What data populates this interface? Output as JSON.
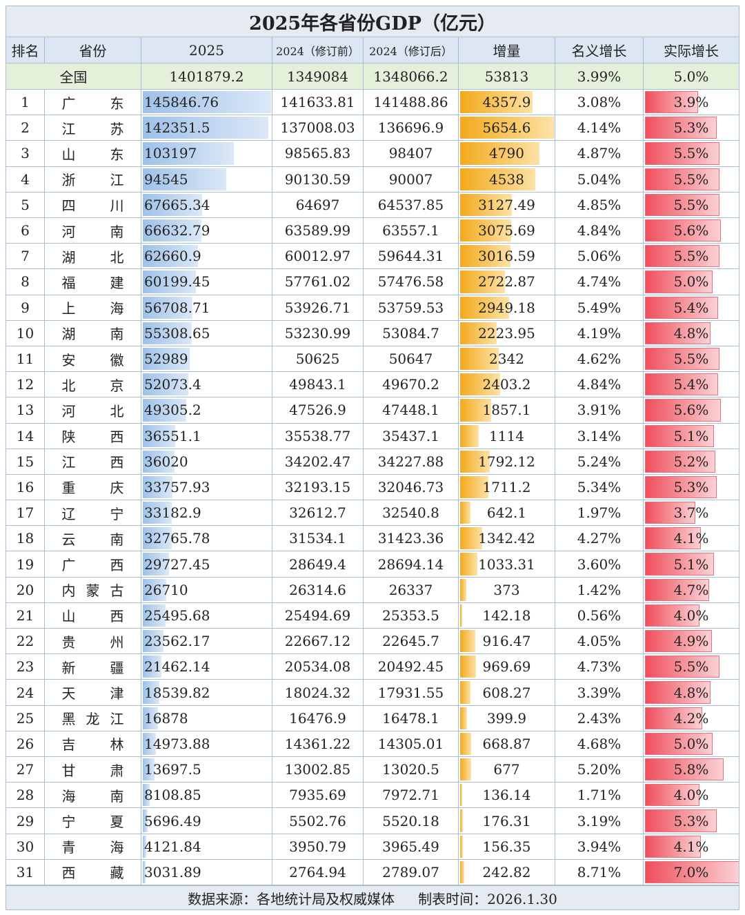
{
  "title": "2025年各省份GDP（亿元）",
  "table": {
    "header": [
      "排名",
      "省份",
      "2025",
      "2024（修订前）",
      "2024（修订后）",
      "增量",
      "名义增长",
      "实际增长"
    ],
    "national": [
      "全国",
      "1401879.2",
      "1349084",
      "1348066.2",
      "53813",
      "3.99%",
      "5.0%"
    ],
    "rows": [
      [
        "1",
        "广东",
        "145846.76",
        "141633.81",
        "141488.86",
        "4357.9",
        "3.08%",
        "3.9%"
      ],
      [
        "2",
        "江苏",
        "142351.5",
        "137008.03",
        "136696.9",
        "5654.6",
        "4.14%",
        "5.3%"
      ],
      [
        "3",
        "山东",
        "103197",
        "98565.83",
        "98407",
        "4790",
        "4.87%",
        "5.5%"
      ],
      [
        "4",
        "浙江",
        "94545",
        "90130.59",
        "90007",
        "4538",
        "5.04%",
        "5.5%"
      ],
      [
        "5",
        "四川",
        "67665.34",
        "64697",
        "64537.85",
        "3127.49",
        "4.85%",
        "5.5%"
      ],
      [
        "6",
        "河南",
        "66632.79",
        "63589.99",
        "63557.1",
        "3075.69",
        "4.84%",
        "5.6%"
      ],
      [
        "7",
        "湖北",
        "62660.9",
        "60012.97",
        "59644.31",
        "3016.59",
        "5.06%",
        "5.5%"
      ],
      [
        "8",
        "福建",
        "60199.45",
        "57761.02",
        "57476.58",
        "2722.87",
        "4.74%",
        "5.0%"
      ],
      [
        "9",
        "上海",
        "56708.71",
        "53926.71",
        "53759.53",
        "2949.18",
        "5.49%",
        "5.4%"
      ],
      [
        "10",
        "湖南",
        "55308.65",
        "53230.99",
        "53084.7",
        "2223.95",
        "4.19%",
        "4.8%"
      ],
      [
        "11",
        "安徽",
        "52989",
        "50625",
        "50647",
        "2342",
        "4.62%",
        "5.5%"
      ],
      [
        "12",
        "北京",
        "52073.4",
        "49843.1",
        "49670.2",
        "2403.2",
        "4.84%",
        "5.4%"
      ],
      [
        "13",
        "河北",
        "49305.2",
        "47526.9",
        "47448.1",
        "1857.1",
        "3.91%",
        "5.6%"
      ],
      [
        "14",
        "陕西",
        "36551.1",
        "35538.77",
        "35437.1",
        "1114",
        "3.14%",
        "5.1%"
      ],
      [
        "15",
        "江西",
        "36020",
        "34202.47",
        "34227.88",
        "1792.12",
        "5.24%",
        "5.2%"
      ],
      [
        "16",
        "重庆",
        "33757.93",
        "32193.15",
        "32046.73",
        "1711.2",
        "5.34%",
        "5.3%"
      ],
      [
        "17",
        "辽宁",
        "33182.9",
        "32612.7",
        "32540.8",
        "642.1",
        "1.97%",
        "3.7%"
      ],
      [
        "18",
        "云南",
        "32765.78",
        "31534.1",
        "31423.36",
        "1342.42",
        "4.27%",
        "4.1%"
      ],
      [
        "19",
        "广西",
        "29727.45",
        "28649.4",
        "28694.14",
        "1033.31",
        "3.60%",
        "5.1%"
      ],
      [
        "20",
        "内蒙古",
        "26710",
        "26314.6",
        "26337",
        "373",
        "1.42%",
        "4.7%"
      ],
      [
        "21",
        "山西",
        "25495.68",
        "25494.69",
        "25353.5",
        "142.18",
        "0.56%",
        "4.0%"
      ],
      [
        "22",
        "贵州",
        "23562.17",
        "22667.12",
        "22645.7",
        "916.47",
        "4.05%",
        "4.9%"
      ],
      [
        "23",
        "新疆",
        "21462.14",
        "20534.08",
        "20492.45",
        "969.69",
        "4.73%",
        "5.5%"
      ],
      [
        "24",
        "天津",
        "18539.82",
        "18024.32",
        "17931.55",
        "608.27",
        "3.39%",
        "4.8%"
      ],
      [
        "25",
        "黑龙江",
        "16878",
        "16476.9",
        "16478.1",
        "399.9",
        "2.43%",
        "4.2%"
      ],
      [
        "26",
        "吉林",
        "14973.88",
        "14361.22",
        "14305.01",
        "668.87",
        "4.68%",
        "5.0%"
      ],
      [
        "27",
        "甘肃",
        "13697.5",
        "13002.85",
        "13020.5",
        "677",
        "5.20%",
        "5.8%"
      ],
      [
        "28",
        "海南",
        "8108.85",
        "7935.69",
        "7972.71",
        "136.14",
        "1.71%",
        "4.0%"
      ],
      [
        "29",
        "宁夏",
        "5696.49",
        "5502.76",
        "5520.18",
        "176.31",
        "3.19%",
        "5.3%"
      ],
      [
        "30",
        "青海",
        "4121.84",
        "3950.79",
        "3965.49",
        "156.35",
        "3.94%",
        "4.1%"
      ],
      [
        "31",
        "西藏",
        "3031.89",
        "2764.94",
        "2789.07",
        "242.82",
        "8.71%",
        "7.0%"
      ]
    ]
  },
  "footer": {
    "source": "数据来源：各地统计局及权威媒体",
    "date": "制表时间：2026.1.30"
  }
}
